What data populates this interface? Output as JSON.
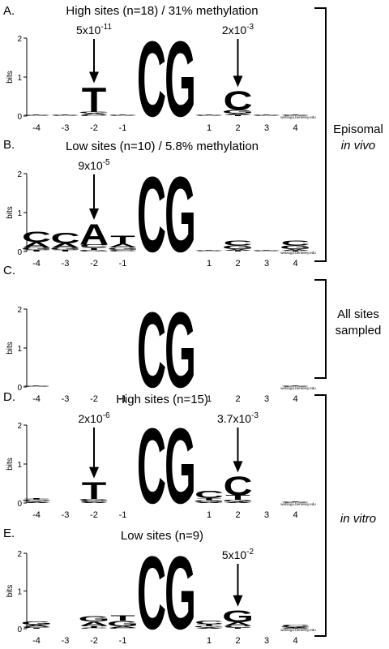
{
  "chart_data": [
    {
      "type": "logo",
      "panel": "A.",
      "title": "High sites (n=18) / 31% methylation",
      "ylabel": "bits",
      "categories": [
        "-4",
        "-3",
        "-2",
        "-1",
        null,
        null,
        "1",
        "2",
        "3",
        "4"
      ],
      "series": [
        {
          "name": "A",
          "color": "#21a03a",
          "values": [
            0.01,
            0.01,
            0.04,
            0.01,
            0,
            0,
            0.01,
            0.04,
            0.01,
            0.01
          ]
        },
        {
          "name": "C",
          "color": "#2b2f96",
          "values": [
            0.01,
            0.01,
            0.03,
            0.01,
            2,
            0,
            0.01,
            0.5,
            0.01,
            0.01
          ]
        },
        {
          "name": "G",
          "color": "#f5a81c",
          "values": [
            0.01,
            0.01,
            0.04,
            0.01,
            0,
            2,
            0.01,
            0.1,
            0.01,
            0.01
          ]
        },
        {
          "name": "T",
          "color": "#d3281e",
          "values": [
            0.01,
            0.01,
            0.65,
            0.01,
            0,
            0,
            0.01,
            0.02,
            0.01,
            0.01
          ]
        }
      ],
      "ylim": [
        0,
        2
      ],
      "yticks": [
        0,
        1,
        2
      ],
      "annotations": [
        {
          "at": "-2",
          "base": "5x10",
          "exponent": "-11"
        },
        {
          "at": "2",
          "base": "2x10",
          "exponent": "-3"
        }
      ],
      "footer": "weblogo.berkeley.edu"
    },
    {
      "type": "logo",
      "panel": "B.",
      "title": "Low sites (n=10) / 5.8% methylation",
      "ylabel": "bits",
      "categories": [
        "-4",
        "-3",
        "-2",
        "-1",
        null,
        null,
        "1",
        "2",
        "3",
        "4"
      ],
      "series": [
        {
          "name": "A",
          "color": "#21a03a",
          "values": [
            0.15,
            0.12,
            0.55,
            0.1,
            0,
            0,
            0.01,
            0.04,
            0.01,
            0.04
          ]
        },
        {
          "name": "C",
          "color": "#2b2f96",
          "values": [
            0.28,
            0.28,
            0.08,
            0.04,
            2,
            0,
            0.01,
            0.12,
            0.01,
            0.12
          ]
        },
        {
          "name": "G",
          "color": "#f5a81c",
          "values": [
            0.05,
            0.05,
            0.04,
            0.06,
            0,
            2,
            0.01,
            0.1,
            0.01,
            0.1
          ]
        },
        {
          "name": "T",
          "color": "#d3281e",
          "values": [
            0.04,
            0.04,
            0.06,
            0.22,
            0,
            0,
            0.01,
            0.02,
            0.01,
            0.02
          ]
        }
      ],
      "ylim": [
        0,
        2
      ],
      "yticks": [
        0,
        1,
        2
      ],
      "annotations": [
        {
          "at": "-2",
          "base": "9x10",
          "exponent": "-5"
        }
      ],
      "footer": "weblogo.berkeley.edu"
    },
    {
      "type": "logo",
      "panel": "C.",
      "ylabel": "bits",
      "categories": [
        "-4",
        "-3",
        "-2",
        "-1",
        null,
        null,
        "1",
        "2",
        "3",
        "4"
      ],
      "series": [
        {
          "name": "A",
          "color": "#21a03a",
          "values": [
            0.01,
            0,
            0,
            0,
            0,
            0,
            0,
            0,
            0,
            0.01
          ]
        },
        {
          "name": "C",
          "color": "#2b2f96",
          "values": [
            0.01,
            0,
            0,
            0,
            2,
            0,
            0,
            0,
            0,
            0.01
          ]
        },
        {
          "name": "G",
          "color": "#f5a81c",
          "values": [
            0.01,
            0,
            0,
            0,
            0,
            2,
            0,
            0,
            0,
            0.01
          ]
        },
        {
          "name": "T",
          "color": "#d3281e",
          "values": [
            0.01,
            0,
            0,
            0,
            0,
            0,
            0,
            0,
            0,
            0.01
          ]
        }
      ],
      "ylim": [
        0,
        2
      ],
      "yticks": [
        0,
        1,
        2
      ],
      "footer": "weblogo.berkeley.edu"
    },
    {
      "type": "logo",
      "panel": "D.",
      "title": "High sites (n=15)",
      "ylabel": "bits",
      "categories": [
        "-4",
        "-3",
        "-2",
        "-1",
        null,
        null,
        "1",
        "2",
        "3",
        "4"
      ],
      "series": [
        {
          "name": "A",
          "color": "#21a03a",
          "values": [
            0.03,
            0,
            0.02,
            0,
            0,
            0,
            0.02,
            0.03,
            0,
            0.01
          ]
        },
        {
          "name": "C",
          "color": "#2b2f96",
          "values": [
            0.03,
            0,
            0.04,
            0,
            2,
            0,
            0.2,
            0.5,
            0,
            0.01
          ]
        },
        {
          "name": "G",
          "color": "#f5a81c",
          "values": [
            0.03,
            0,
            0.04,
            0,
            0,
            2,
            0.05,
            0.05,
            0,
            0.01
          ]
        },
        {
          "name": "T",
          "color": "#d3281e",
          "values": [
            0.03,
            0,
            0.45,
            0,
            0,
            0,
            0.05,
            0.12,
            0,
            0.01
          ]
        }
      ],
      "ylim": [
        0,
        2
      ],
      "yticks": [
        0,
        1,
        2
      ],
      "annotations": [
        {
          "at": "-2",
          "base": "2x10",
          "exponent": "-6"
        },
        {
          "at": "2",
          "base": "3.7x10",
          "exponent": "-3"
        }
      ],
      "footer": "weblogo.berkeley.edu"
    },
    {
      "type": "logo",
      "panel": "E.",
      "title": "Low sites (n=9)",
      "ylabel": "bits",
      "categories": [
        "-4",
        "-3",
        "-2",
        "-1",
        null,
        null,
        "1",
        "2",
        "3",
        "4"
      ],
      "series": [
        {
          "name": "A",
          "color": "#21a03a",
          "values": [
            0.06,
            0,
            0.12,
            0.04,
            0,
            0,
            0.03,
            0.1,
            0,
            0.02
          ]
        },
        {
          "name": "C",
          "color": "#2b2f96",
          "values": [
            0.03,
            0,
            0.02,
            0.02,
            2,
            0,
            0.1,
            0.04,
            0,
            0.05
          ]
        },
        {
          "name": "G",
          "color": "#f5a81c",
          "values": [
            0.08,
            0,
            0.15,
            0.15,
            0,
            2,
            0.04,
            0.33,
            0,
            0.02
          ]
        },
        {
          "name": "T",
          "color": "#d3281e",
          "values": [
            0.02,
            0,
            0.05,
            0.15,
            0,
            0,
            0.05,
            0.03,
            0,
            0.01
          ]
        }
      ],
      "ylim": [
        0,
        2
      ],
      "yticks": [
        0,
        1,
        2
      ],
      "annotations": [
        {
          "at": "2",
          "base": "5x10",
          "exponent": "-2"
        }
      ],
      "footer": "weblogo.berkeley.edu"
    }
  ],
  "side_labels": {
    "episomal": "Episomal",
    "in_vivo": "in vivo",
    "all_sites": "All sites",
    "sampled": "sampled",
    "in_vitro": "in vitro"
  }
}
